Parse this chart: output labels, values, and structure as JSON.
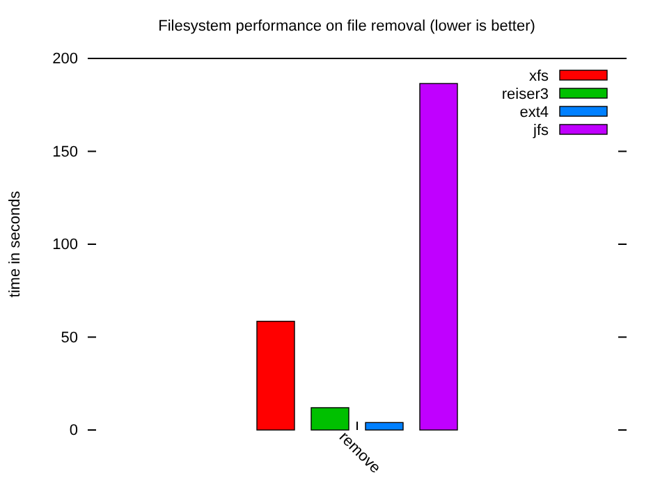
{
  "chart_data": {
    "type": "bar",
    "title": "Filesystem performance on file removal (lower is better)",
    "ylabel": "time in seconds",
    "categories": [
      "remove"
    ],
    "series": [
      {
        "name": "xfs",
        "color": "#ff0000",
        "values": [
          58.5
        ]
      },
      {
        "name": "reiser3",
        "color": "#00c000",
        "values": [
          12
        ]
      },
      {
        "name": "ext4",
        "color": "#0080ff",
        "values": [
          4
        ]
      },
      {
        "name": "jfs",
        "color": "#c000ff",
        "values": [
          186.5
        ]
      }
    ],
    "ylim": [
      0,
      200
    ],
    "yticks": [
      0,
      50,
      100,
      150,
      200
    ],
    "legend": "top right",
    "grid": false
  }
}
